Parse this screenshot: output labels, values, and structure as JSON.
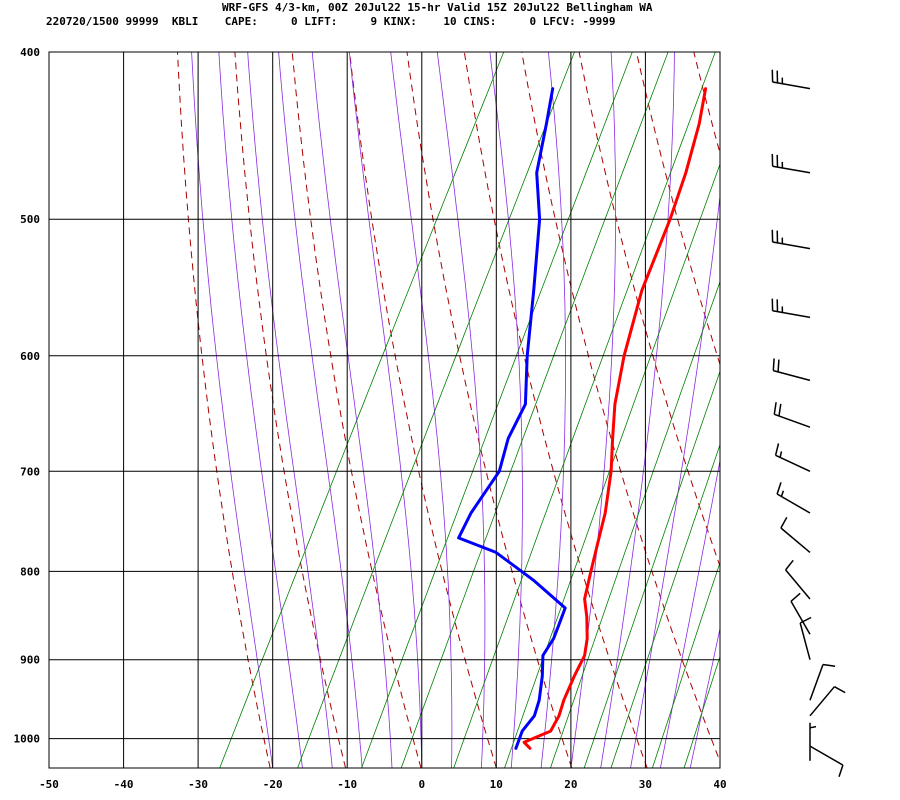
{
  "header": {
    "line1": "WRF-GFS 4/3-km, 00Z 20Jul22 15-hr Valid 15Z 20Jul22 Bellingham WA",
    "line2": "220720/1500 99999  KBLI    CAPE:     0 LIFT:     9 KINX:    10 CINS:     0 LFCV: -9999"
  },
  "colors": {
    "temperature": "#ff0000",
    "dewpoint": "#0000ff",
    "dry_adiabat": "#aa0000",
    "moist_adiabat": "#8a2be2",
    "mixing_ratio": "#008000",
    "grid": "#000000",
    "wind_barb": "#000000"
  },
  "chart_data": {
    "type": "skew-t",
    "x_axis": {
      "range": [
        -50,
        40
      ],
      "ticks": [
        -50,
        -40,
        -30,
        -20,
        -10,
        0,
        10,
        20,
        30,
        40
      ]
    },
    "y_axis": {
      "scale": "log",
      "range": [
        1040,
        400
      ],
      "ticks": [
        400,
        500,
        600,
        700,
        800,
        900,
        1000
      ]
    },
    "grid": true,
    "series": [
      {
        "key": "temperature",
        "points": [
          {
            "p": 1013,
            "t": 13.2
          },
          {
            "p": 1005,
            "t": 12.0
          },
          {
            "p": 990,
            "t": 14.8
          },
          {
            "p": 970,
            "t": 14.9
          },
          {
            "p": 950,
            "t": 14.5
          },
          {
            "p": 920,
            "t": 14.3
          },
          {
            "p": 895,
            "t": 14.3
          },
          {
            "p": 875,
            "t": 13.5
          },
          {
            "p": 850,
            "t": 12.0
          },
          {
            "p": 830,
            "t": 10.5
          },
          {
            "p": 800,
            "t": 9.5
          },
          {
            "p": 770,
            "t": 8.5
          },
          {
            "p": 740,
            "t": 7.5
          },
          {
            "p": 700,
            "t": 5.5
          },
          {
            "p": 670,
            "t": 3.5
          },
          {
            "p": 640,
            "t": 1.5
          },
          {
            "p": 600,
            "t": -0.5
          },
          {
            "p": 550,
            "t": -2.5
          },
          {
            "p": 500,
            "t": -3.5
          },
          {
            "p": 470,
            "t": -4.5
          },
          {
            "p": 440,
            "t": -6.0
          },
          {
            "p": 420,
            "t": -7.5
          }
        ]
      },
      {
        "key": "dewpoint",
        "points": [
          {
            "p": 1013,
            "t": 11.3
          },
          {
            "p": 990,
            "t": 11.0
          },
          {
            "p": 970,
            "t": 11.6
          },
          {
            "p": 950,
            "t": 11.2
          },
          {
            "p": 920,
            "t": 10.0
          },
          {
            "p": 895,
            "t": 8.7
          },
          {
            "p": 875,
            "t": 9.0
          },
          {
            "p": 860,
            "t": 8.8
          },
          {
            "p": 840,
            "t": 8.5
          },
          {
            "p": 810,
            "t": 2.5
          },
          {
            "p": 780,
            "t": -4.5
          },
          {
            "p": 765,
            "t": -10.5
          },
          {
            "p": 740,
            "t": -10.5
          },
          {
            "p": 700,
            "t": -9.5
          },
          {
            "p": 670,
            "t": -10.5
          },
          {
            "p": 640,
            "t": -10.5
          },
          {
            "p": 600,
            "t": -13.5
          },
          {
            "p": 550,
            "t": -17.0
          },
          {
            "p": 500,
            "t": -21.0
          },
          {
            "p": 470,
            "t": -24.5
          },
          {
            "p": 440,
            "t": -26.5
          },
          {
            "p": 420,
            "t": -28.0
          }
        ]
      }
    ],
    "wind_barbs": [
      {
        "p": 420,
        "dir": 280,
        "spd": 25
      },
      {
        "p": 470,
        "dir": 280,
        "spd": 25
      },
      {
        "p": 520,
        "dir": 280,
        "spd": 25
      },
      {
        "p": 570,
        "dir": 280,
        "spd": 25
      },
      {
        "p": 620,
        "dir": 285,
        "spd": 20
      },
      {
        "p": 660,
        "dir": 290,
        "spd": 20
      },
      {
        "p": 700,
        "dir": 295,
        "spd": 15
      },
      {
        "p": 740,
        "dir": 300,
        "spd": 15
      },
      {
        "p": 780,
        "dir": 310,
        "spd": 10
      },
      {
        "p": 830,
        "dir": 320,
        "spd": 10
      },
      {
        "p": 870,
        "dir": 330,
        "spd": 10
      },
      {
        "p": 900,
        "dir": 345,
        "spd": 10
      },
      {
        "p": 950,
        "dir": 20,
        "spd": 10
      },
      {
        "p": 970,
        "dir": 40,
        "spd": 10
      },
      {
        "p": 1010,
        "dir": 120,
        "spd": 10
      },
      {
        "p": 1030,
        "dir": 0,
        "spd": 5
      }
    ]
  }
}
